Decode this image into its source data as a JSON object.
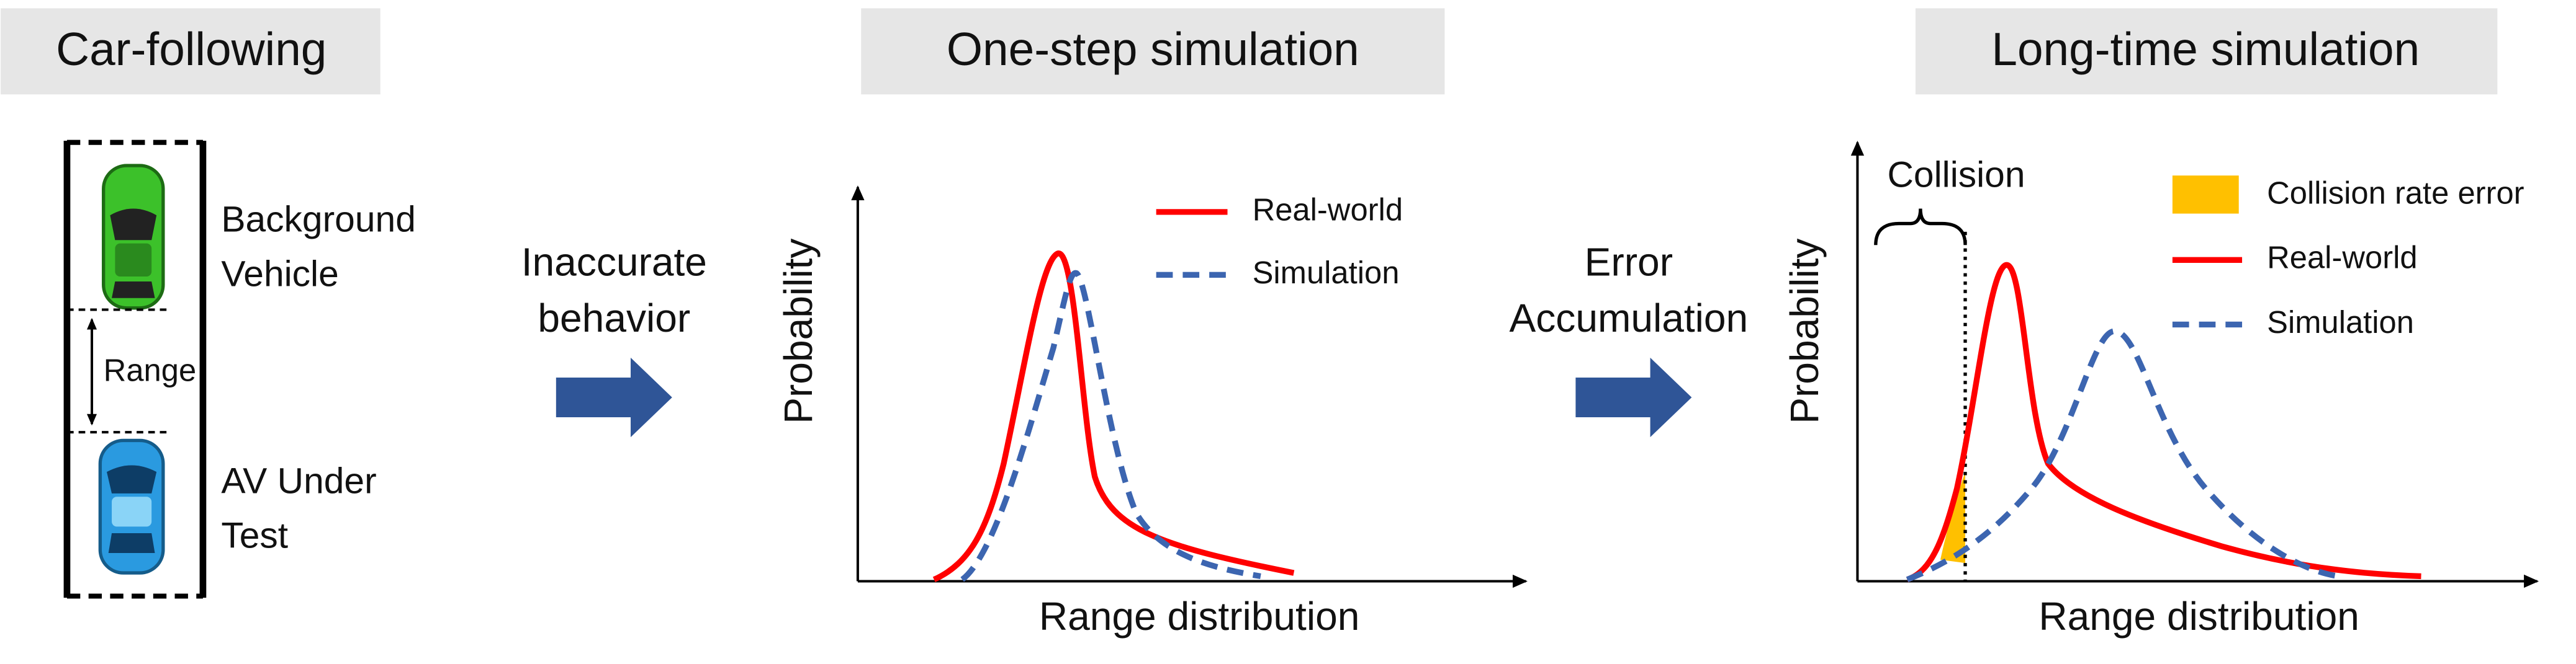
{
  "panels": {
    "car_following": {
      "title": "Car-following",
      "range_label": "Range",
      "background_vehicle": [
        "Background",
        "Vehicle"
      ],
      "av_under_test": [
        "AV Under",
        "Test"
      ]
    },
    "arrow_1": {
      "label": [
        "Inaccurate",
        "behavior"
      ]
    },
    "one_step": {
      "title": "One-step simulation",
      "y_axis": "Probability",
      "x_axis": "Range distribution",
      "legend": [
        "Real-world",
        "Simulation"
      ]
    },
    "arrow_2": {
      "label": [
        "Error",
        "Accumulation"
      ]
    },
    "long_time": {
      "title": "Long-time simulation",
      "y_axis": "Probability",
      "x_axis": "Range distribution",
      "collision": "Collision",
      "legend": [
        "Collision rate error",
        "Real-world",
        "Simulation"
      ]
    }
  }
}
